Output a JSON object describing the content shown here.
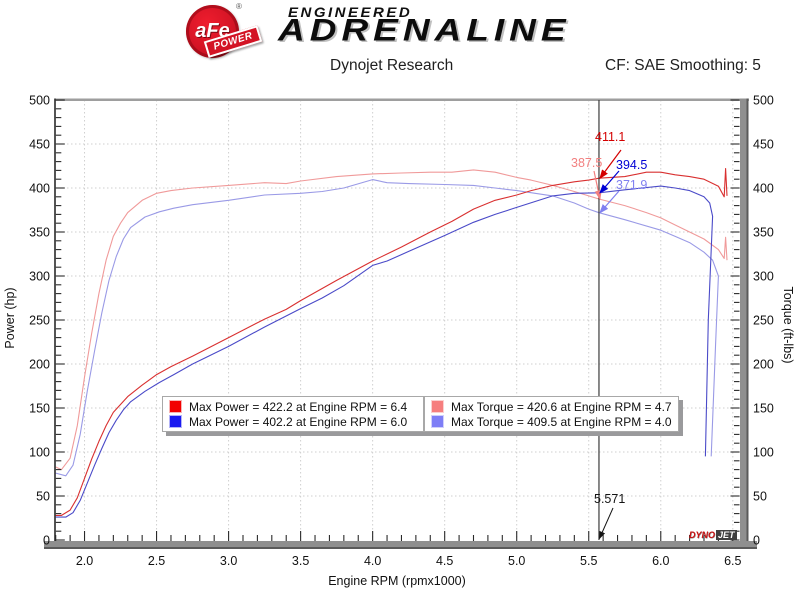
{
  "header": {
    "logo": {
      "circle_text": "aFe",
      "ribbon_text": "POWER",
      "registered": "®"
    },
    "brand_line1": "ENGINEERED",
    "brand_line2": "ADRENALINE",
    "subtitle": "Dynojet Research",
    "correction": "CF: SAE Smoothing: 5"
  },
  "legend": {
    "boxes": [
      {
        "entries": [
          {
            "swatch": "#f20000",
            "text": "Max Power = 422.2 at Engine RPM = 6.4"
          },
          {
            "swatch": "#1a1af0",
            "text": "Max Power = 402.2 at Engine RPM = 6.0"
          }
        ]
      },
      {
        "entries": [
          {
            "swatch": "#f67e7e",
            "text": "Max Torque = 420.6 at Engine RPM = 4.7"
          },
          {
            "swatch": "#7e7ef6",
            "text": "Max Torque = 409.5 at Engine RPM = 4.0"
          }
        ]
      }
    ]
  },
  "footer_logo": {
    "dyno": "DYNO",
    "jet": "JET"
  },
  "chart_data": {
    "type": "line",
    "x_axis": {
      "label": "Engine RPM (rpmx1000)",
      "min": 1.795,
      "max": 6.55,
      "major_ticks": [
        2.0,
        2.5,
        3.0,
        3.5,
        4.0,
        4.5,
        5.0,
        5.5,
        6.0,
        6.5
      ],
      "tick_labels": [
        "2.0",
        "2.5",
        "3.0",
        "3.5",
        "4.0",
        "4.5",
        "5.0",
        "5.5",
        "6.0",
        "6.5"
      ],
      "minor_step": 0.1,
      "grid": "dotted"
    },
    "y_axis_left": {
      "label": "Power (hp)",
      "min": 0,
      "max": 500,
      "major_step": 50,
      "minor_step": 10,
      "tick_labels": [
        "0",
        "50",
        "100",
        "150",
        "200",
        "250",
        "300",
        "350",
        "400",
        "450",
        "500"
      ]
    },
    "y_axis_right": {
      "label": "Torque (ft-lbs)",
      "min": 0,
      "max": 500,
      "major_step": 50,
      "minor_step": 10,
      "tick_labels": [
        "0",
        "50",
        "100",
        "150",
        "200",
        "250",
        "300",
        "350",
        "400",
        "450",
        "500"
      ]
    },
    "series": [
      {
        "id": "torque-red",
        "color": "#f09a9a",
        "max": 420.6,
        "max_rpm": 4.7,
        "points": [
          [
            1.8,
            83
          ],
          [
            1.84,
            80
          ],
          [
            1.9,
            93
          ],
          [
            1.95,
            130
          ],
          [
            2.0,
            185
          ],
          [
            2.05,
            235
          ],
          [
            2.1,
            280
          ],
          [
            2.15,
            318
          ],
          [
            2.2,
            345
          ],
          [
            2.25,
            360
          ],
          [
            2.3,
            372
          ],
          [
            2.4,
            386
          ],
          [
            2.5,
            394
          ],
          [
            2.6,
            397
          ],
          [
            2.75,
            400
          ],
          [
            3.0,
            403
          ],
          [
            3.25,
            406
          ],
          [
            3.4,
            405
          ],
          [
            3.5,
            408
          ],
          [
            3.75,
            413
          ],
          [
            4.0,
            416
          ],
          [
            4.2,
            417
          ],
          [
            4.4,
            418
          ],
          [
            4.55,
            418
          ],
          [
            4.7,
            420.6
          ],
          [
            4.85,
            418
          ],
          [
            5.0,
            412
          ],
          [
            5.1,
            409
          ],
          [
            5.25,
            403
          ],
          [
            5.4,
            396
          ],
          [
            5.5,
            391
          ],
          [
            5.571,
            387.5
          ],
          [
            5.75,
            380
          ],
          [
            5.9,
            372
          ],
          [
            6.0,
            366
          ],
          [
            6.1,
            358
          ],
          [
            6.2,
            350
          ],
          [
            6.3,
            342
          ],
          [
            6.4,
            330
          ],
          [
            6.44,
            320
          ],
          [
            6.45,
            344
          ],
          [
            6.46,
            318
          ]
        ]
      },
      {
        "id": "torque-blue",
        "color": "#9a9ae6",
        "max": 409.5,
        "max_rpm": 4.0,
        "points": [
          [
            1.8,
            76
          ],
          [
            1.87,
            73
          ],
          [
            1.92,
            85
          ],
          [
            1.97,
            120
          ],
          [
            2.02,
            170
          ],
          [
            2.07,
            215
          ],
          [
            2.12,
            258
          ],
          [
            2.17,
            295
          ],
          [
            2.22,
            322
          ],
          [
            2.27,
            342
          ],
          [
            2.32,
            355
          ],
          [
            2.42,
            367
          ],
          [
            2.52,
            373
          ],
          [
            2.62,
            377
          ],
          [
            2.75,
            381
          ],
          [
            3.0,
            386
          ],
          [
            3.25,
            392
          ],
          [
            3.5,
            394
          ],
          [
            3.65,
            396
          ],
          [
            3.8,
            400
          ],
          [
            4.0,
            409.5
          ],
          [
            4.1,
            406
          ],
          [
            4.25,
            405
          ],
          [
            4.5,
            404
          ],
          [
            4.7,
            403
          ],
          [
            4.85,
            400
          ],
          [
            5.0,
            397
          ],
          [
            5.25,
            391
          ],
          [
            5.4,
            383
          ],
          [
            5.5,
            376
          ],
          [
            5.571,
            371.9
          ],
          [
            5.75,
            364
          ],
          [
            6.0,
            352
          ],
          [
            6.1,
            345
          ],
          [
            6.2,
            338
          ],
          [
            6.3,
            327
          ],
          [
            6.36,
            318
          ],
          [
            6.4,
            300
          ],
          [
            6.38,
            220
          ],
          [
            6.35,
            95
          ]
        ]
      },
      {
        "id": "power-red",
        "color": "#d93030",
        "max": 422.2,
        "max_rpm": 6.4,
        "points": [
          [
            1.8,
            28
          ],
          [
            1.84,
            28
          ],
          [
            1.9,
            34
          ],
          [
            1.95,
            48
          ],
          [
            2.0,
            70
          ],
          [
            2.05,
            92
          ],
          [
            2.1,
            112
          ],
          [
            2.15,
            130
          ],
          [
            2.2,
            145
          ],
          [
            2.25,
            154
          ],
          [
            2.3,
            163
          ],
          [
            2.4,
            176
          ],
          [
            2.5,
            188
          ],
          [
            2.6,
            197
          ],
          [
            2.75,
            209
          ],
          [
            3.0,
            230
          ],
          [
            3.25,
            251
          ],
          [
            3.4,
            262
          ],
          [
            3.5,
            272
          ],
          [
            3.75,
            295
          ],
          [
            4.0,
            317
          ],
          [
            4.2,
            333
          ],
          [
            4.4,
            350
          ],
          [
            4.55,
            362
          ],
          [
            4.7,
            376
          ],
          [
            4.85,
            386
          ],
          [
            5.0,
            392
          ],
          [
            5.1,
            397
          ],
          [
            5.25,
            403
          ],
          [
            5.4,
            407
          ],
          [
            5.5,
            409
          ],
          [
            5.571,
            411.1
          ],
          [
            5.75,
            413
          ],
          [
            5.9,
            418
          ],
          [
            6.0,
            418
          ],
          [
            6.1,
            415
          ],
          [
            6.2,
            413
          ],
          [
            6.3,
            410
          ],
          [
            6.4,
            402
          ],
          [
            6.44,
            390
          ],
          [
            6.45,
            422.2
          ],
          [
            6.46,
            391
          ]
        ]
      },
      {
        "id": "power-blue",
        "color": "#4a4ac8",
        "max": 402.2,
        "max_rpm": 6.0,
        "points": [
          [
            1.8,
            26
          ],
          [
            1.87,
            26
          ],
          [
            1.92,
            31
          ],
          [
            1.97,
            45
          ],
          [
            2.02,
            65
          ],
          [
            2.07,
            85
          ],
          [
            2.12,
            104
          ],
          [
            2.17,
            122
          ],
          [
            2.22,
            136
          ],
          [
            2.27,
            148
          ],
          [
            2.32,
            157
          ],
          [
            2.42,
            169
          ],
          [
            2.52,
            179
          ],
          [
            2.62,
            188
          ],
          [
            2.75,
            200
          ],
          [
            3.0,
            220
          ],
          [
            3.25,
            242
          ],
          [
            3.5,
            263
          ],
          [
            3.65,
            275
          ],
          [
            3.8,
            289
          ],
          [
            4.0,
            312
          ],
          [
            4.1,
            317
          ],
          [
            4.25,
            328
          ],
          [
            4.5,
            346
          ],
          [
            4.7,
            361
          ],
          [
            4.85,
            370
          ],
          [
            5.0,
            378
          ],
          [
            5.25,
            391
          ],
          [
            5.4,
            394
          ],
          [
            5.571,
            394.5
          ],
          [
            5.75,
            398
          ],
          [
            6.0,
            402.2
          ],
          [
            6.1,
            400
          ],
          [
            6.2,
            397
          ],
          [
            6.3,
            390
          ],
          [
            6.34,
            383
          ],
          [
            6.36,
            368
          ],
          [
            6.33,
            250
          ],
          [
            6.31,
            95
          ]
        ]
      }
    ],
    "cursor": {
      "rpm": 5.571,
      "label": "5.571",
      "readouts": [
        {
          "id": "power-red",
          "label": "411.1",
          "value": 411.1,
          "color": "#d40000"
        },
        {
          "id": "torque-red",
          "label": "387.5",
          "value": 387.5,
          "color": "#f28080"
        },
        {
          "id": "power-blue",
          "label": "394.5",
          "value": 394.5,
          "color": "#0000d4"
        },
        {
          "id": "torque-blue",
          "label": "371.9",
          "value": 371.9,
          "color": "#8080f0"
        }
      ]
    }
  }
}
